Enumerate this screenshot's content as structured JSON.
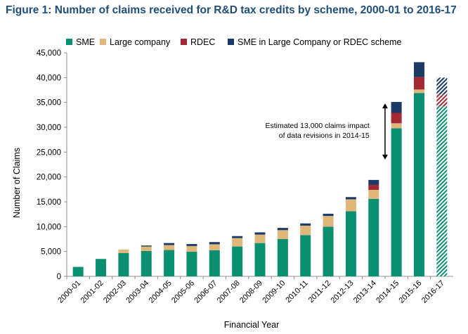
{
  "figure_title": "Figure 1: Number of claims received for R&D tax credits by scheme, 2000-01 to 2016-17",
  "colors": {
    "sme": "#0b8f71",
    "large_company": "#e0b77a",
    "rdec": "#a32a35",
    "sme_in_large_rdec": "#1c3a66",
    "axis": "#8c8c8c",
    "gridline": "#d9d9d9"
  },
  "chart_data": {
    "type": "bar",
    "stacked": true,
    "xlabel": "Financial Year",
    "ylabel": "Number of Claims",
    "ylim": [
      0,
      45000
    ],
    "yticks": [
      0,
      5000,
      10000,
      15000,
      20000,
      25000,
      30000,
      35000,
      40000,
      45000
    ],
    "ytick_labels": [
      "0",
      "5,000",
      "10,000",
      "15,000",
      "20,000",
      "25,000",
      "30,000",
      "35,000",
      "40,000",
      "45,000"
    ],
    "grid": false,
    "legend_position": "top",
    "categories": [
      "2000-01",
      "2001-02",
      "2002-03",
      "2003-04",
      "2004-05",
      "2005-06",
      "2006-07",
      "2007-08",
      "2008-09",
      "2009-10",
      "2010-11",
      "2011-12",
      "2012-13",
      "2013-14",
      "2014-15",
      "2015-16",
      "2016-17"
    ],
    "series": [
      {
        "name": "SME",
        "color_key": "sme",
        "values": [
          1900,
          3500,
          4700,
          5100,
          5300,
          4950,
          5250,
          6000,
          6700,
          7500,
          8300,
          10000,
          13100,
          15600,
          29800,
          36900,
          34200
        ]
      },
      {
        "name": "Large company",
        "color_key": "large_company",
        "values": [
          0,
          0,
          700,
          900,
          1000,
          1150,
          1200,
          1700,
          1700,
          1800,
          1900,
          2150,
          2400,
          1800,
          1000,
          700,
          0
        ]
      },
      {
        "name": "RDEC",
        "color_key": "rdec",
        "values": [
          0,
          0,
          0,
          0,
          0,
          0,
          0,
          0,
          0,
          0,
          0,
          0,
          0,
          1000,
          2100,
          2500,
          2400
        ]
      },
      {
        "name": "SME in Large Company or RDEC scheme",
        "color_key": "sme_in_large_rdec",
        "values": [
          0,
          0,
          0,
          200,
          400,
          400,
          450,
          400,
          450,
          450,
          450,
          450,
          450,
          1000,
          2200,
          3000,
          3400
        ]
      }
    ],
    "hatched_categories": [
      "2016-17"
    ],
    "annotations": [
      {
        "text_lines": [
          "Estimated 13,000 claims impact",
          "of data  revisions in 2014-15"
        ],
        "arrow_from": 34800,
        "arrow_to": 23500,
        "category": "2013-14"
      }
    ]
  }
}
